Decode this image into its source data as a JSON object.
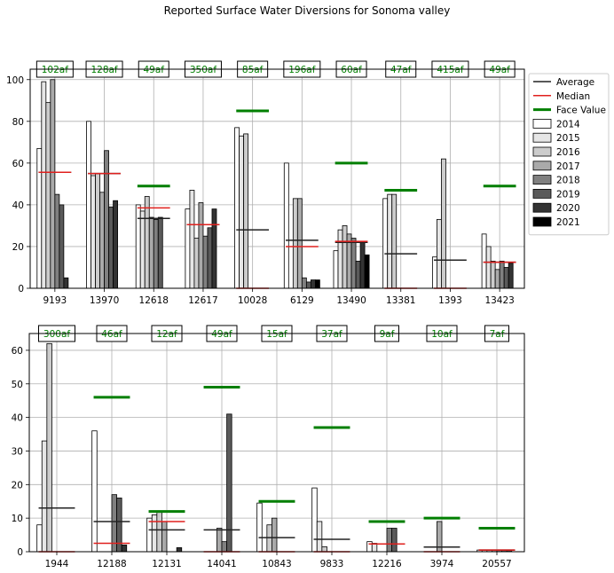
{
  "figure": {
    "title": "Reported Surface Water Diversions for Sonoma valley"
  },
  "colors": {
    "years": [
      "#ffffff",
      "#e6e6e6",
      "#cccccc",
      "#aaaaaa",
      "#808080",
      "#5a5a5a",
      "#333333",
      "#000000"
    ],
    "average": "#222222",
    "median": "#e0201e",
    "face_value": "#007f00",
    "face_value_text": "#007f00",
    "grid": "#b0b0b0"
  },
  "legend": {
    "placement": "upper-right-outside",
    "entries": [
      {
        "label": "Average",
        "kind": "line",
        "key": "average"
      },
      {
        "label": "Median",
        "kind": "line",
        "key": "median"
      },
      {
        "label": "Face Value",
        "kind": "thickline",
        "key": "face_value"
      },
      {
        "label": "2014",
        "kind": "box",
        "yearIndex": 0
      },
      {
        "label": "2015",
        "kind": "box",
        "yearIndex": 1
      },
      {
        "label": "2016",
        "kind": "box",
        "yearIndex": 2
      },
      {
        "label": "2017",
        "kind": "box",
        "yearIndex": 3
      },
      {
        "label": "2018",
        "kind": "box",
        "yearIndex": 4
      },
      {
        "label": "2019",
        "kind": "box",
        "yearIndex": 5
      },
      {
        "label": "2020",
        "kind": "box",
        "yearIndex": 6
      },
      {
        "label": "2021",
        "kind": "box",
        "yearIndex": 7
      }
    ]
  },
  "chart_data": [
    {
      "type": "bar",
      "title": "",
      "xlabel": "",
      "ylabel": "",
      "ylim": [
        0,
        105
      ],
      "yticks": [
        0,
        20,
        40,
        60,
        80,
        100
      ],
      "grid": true,
      "years": [
        "2014",
        "2015",
        "2016",
        "2017",
        "2018",
        "2019",
        "2020",
        "2021"
      ],
      "groups": [
        {
          "category": "9193",
          "values": [
            67,
            99,
            89,
            100,
            45,
            40,
            5,
            0
          ],
          "average": 55.6,
          "median": 55.6,
          "face_label": "102af",
          "face_value": 102
        },
        {
          "category": "13970",
          "values": [
            80,
            54,
            55,
            46,
            66,
            39,
            42,
            0
          ],
          "average": 55,
          "median": 55,
          "face_label": "128af",
          "face_value": 128
        },
        {
          "category": "12618",
          "values": [
            40,
            37,
            44,
            34,
            33,
            34,
            0,
            0
          ],
          "average": 33.5,
          "median": 38.5,
          "face_label": "49af",
          "face_value": 49
        },
        {
          "category": "12617",
          "values": [
            38,
            47,
            24,
            41,
            25,
            29,
            38,
            0
          ],
          "average": 30.5,
          "median": 30.5,
          "face_label": "350af",
          "face_value": 350
        },
        {
          "category": "10028",
          "values": [
            77,
            73,
            74,
            0,
            0,
            0,
            0,
            0
          ],
          "average": 28,
          "median": 0,
          "face_label": "85af",
          "face_value": 85
        },
        {
          "category": "6129",
          "values": [
            60,
            0,
            43,
            43,
            5,
            3,
            4,
            4
          ],
          "average": 23,
          "median": 20,
          "face_label": "196af",
          "face_value": 196
        },
        {
          "category": "13490",
          "values": [
            18,
            28,
            30,
            26,
            24,
            13,
            22,
            16
          ],
          "average": 22,
          "median": 22.5,
          "face_label": "60af",
          "face_value": 60
        },
        {
          "category": "13381",
          "values": [
            43,
            45,
            45,
            0,
            0,
            0,
            0,
            0
          ],
          "average": 16.5,
          "median": 0,
          "face_label": "47af",
          "face_value": 47
        },
        {
          "category": "1393",
          "values": [
            15,
            33,
            62,
            0,
            0,
            0,
            0,
            0
          ],
          "average": 13.5,
          "median": 0,
          "face_label": "415af",
          "face_value": 415
        },
        {
          "category": "13423",
          "values": [
            26,
            20,
            13,
            9,
            13,
            10,
            12,
            0
          ],
          "average": 12.5,
          "median": 12.5,
          "face_label": "49af",
          "face_value": 49
        }
      ]
    },
    {
      "type": "bar",
      "title": "",
      "xlabel": "",
      "ylabel": "",
      "ylim": [
        0,
        65
      ],
      "yticks": [
        0,
        10,
        20,
        30,
        40,
        50,
        60
      ],
      "grid": true,
      "years": [
        "2014",
        "2015",
        "2016",
        "2017",
        "2018",
        "2019",
        "2020",
        "2021"
      ],
      "groups": [
        {
          "category": "1944",
          "values": [
            8,
            33,
            62,
            0,
            0,
            0,
            0,
            0
          ],
          "average": 13,
          "median": 0,
          "face_label": "300af",
          "face_value": 300
        },
        {
          "category": "12188",
          "values": [
            36,
            0,
            0,
            0,
            17,
            16,
            2,
            0
          ],
          "average": 9,
          "median": 2.5,
          "face_label": "46af",
          "face_value": 46
        },
        {
          "category": "12131",
          "values": [
            10,
            11,
            12,
            9,
            0,
            0,
            1.2,
            0
          ],
          "average": 6.5,
          "median": 9,
          "face_label": "12af",
          "face_value": 12
        },
        {
          "category": "14041",
          "values": [
            0,
            0,
            0,
            7,
            3,
            41,
            0,
            0
          ],
          "average": 6.5,
          "median": 0,
          "face_label": "49af",
          "face_value": 49
        },
        {
          "category": "10843",
          "values": [
            14.5,
            0,
            8,
            10,
            0,
            0,
            0,
            0
          ],
          "average": 4.2,
          "median": 0,
          "face_label": "15af",
          "face_value": 15
        },
        {
          "category": "9833",
          "values": [
            19,
            9,
            1.5,
            0,
            0,
            0,
            0,
            0
          ],
          "average": 3.7,
          "median": 0,
          "face_label": "37af",
          "face_value": 37
        },
        {
          "category": "12216",
          "values": [
            3,
            2.5,
            0,
            0,
            7,
            7,
            0,
            0
          ],
          "average": 2.3,
          "median": 2.3,
          "face_label": "9af",
          "face_value": 9
        },
        {
          "category": "3974",
          "values": [
            0,
            0,
            0,
            9,
            0,
            0,
            0,
            0
          ],
          "average": 1.4,
          "median": 0,
          "face_label": "10af",
          "face_value": 10
        },
        {
          "category": "20557",
          "values": [
            0.5,
            0.5,
            0.5,
            0.5,
            0.5,
            0.5,
            0.5,
            0
          ],
          "average": 0.5,
          "median": 0.5,
          "face_label": "7af",
          "face_value": 7
        }
      ]
    }
  ]
}
